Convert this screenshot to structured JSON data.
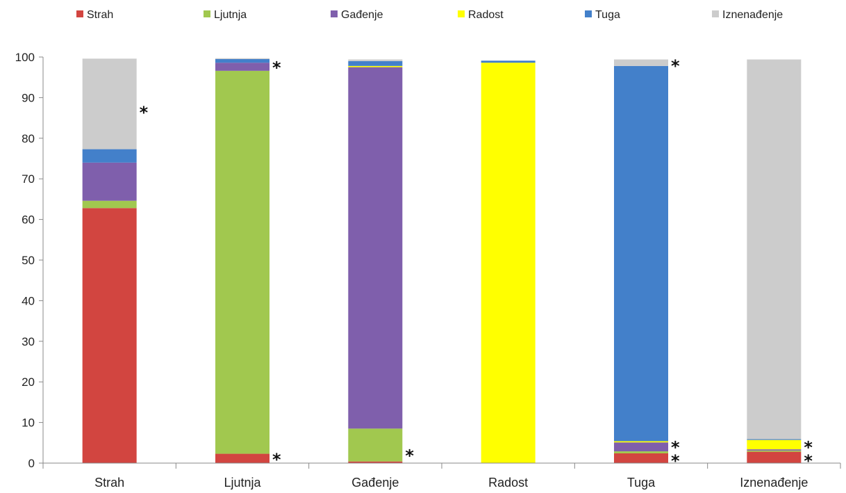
{
  "chart_data": {
    "type": "bar",
    "stacked": true,
    "categories": [
      "Strah",
      "Ljutnja",
      "Gađenje",
      "Radost",
      "Tuga",
      "Iznenađenje"
    ],
    "series": [
      {
        "name": "Strah",
        "color": "#d24540",
        "values": [
          62.8,
          2.3,
          0.4,
          0.0,
          2.4,
          2.8
        ]
      },
      {
        "name": "Ljutnja",
        "color": "#a1c84f",
        "values": [
          1.8,
          94.3,
          8.1,
          0.0,
          0.5,
          0.3
        ]
      },
      {
        "name": "Gađenje",
        "color": "#7f5fac",
        "values": [
          9.4,
          2.0,
          89.0,
          0.0,
          2.2,
          0.3
        ]
      },
      {
        "name": "Radost",
        "color": "#ffff00",
        "values": [
          0.0,
          0.0,
          0.3,
          98.6,
          0.3,
          2.3
        ]
      },
      {
        "name": "Tuga",
        "color": "#4380ca",
        "values": [
          3.3,
          0.9,
          1.2,
          0.5,
          92.4,
          0.2
        ]
      },
      {
        "name": "Iznenađenje",
        "color": "#cccccc",
        "values": [
          22.3,
          0.2,
          0.4,
          0.0,
          1.6,
          93.5
        ]
      }
    ],
    "ylim": [
      0,
      100
    ],
    "yticks": [
      0,
      10,
      20,
      30,
      40,
      50,
      60,
      70,
      80,
      90,
      100
    ],
    "xlabel": "",
    "ylabel": "",
    "legend": "top",
    "annotations": [
      {
        "category": "Strah",
        "value": 87,
        "text": "*"
      },
      {
        "category": "Ljutnja",
        "value": 98,
        "text": "*"
      },
      {
        "category": "Ljutnja",
        "value": 1.5,
        "text": "*"
      },
      {
        "category": "Gađenje",
        "value": 2.5,
        "text": "*"
      },
      {
        "category": "Tuga",
        "value": 98.5,
        "text": "*"
      },
      {
        "category": "Tuga",
        "value": 4.5,
        "text": "*"
      },
      {
        "category": "Tuga",
        "value": 1.2,
        "text": "*"
      },
      {
        "category": "Iznenađenje",
        "value": 4.5,
        "text": "*"
      },
      {
        "category": "Iznenađenje",
        "value": 1.2,
        "text": "*"
      }
    ]
  }
}
